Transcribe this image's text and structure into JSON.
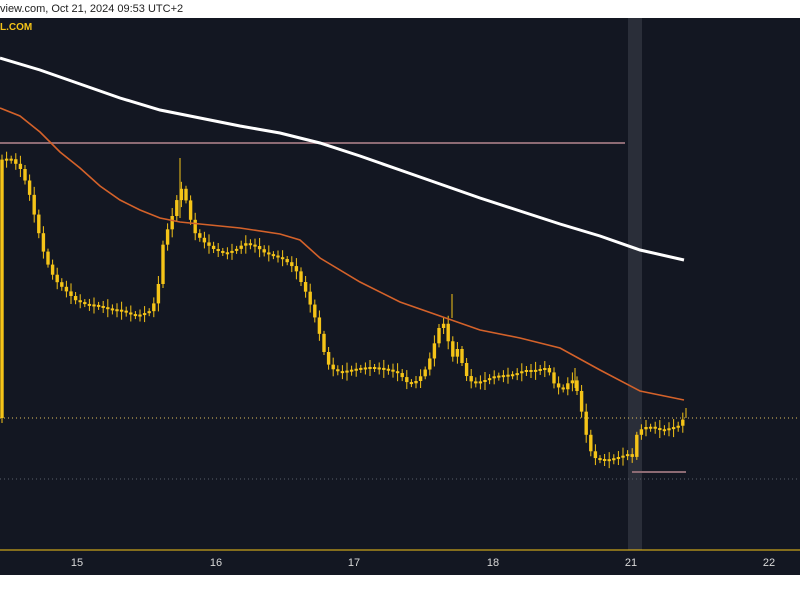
{
  "header": {
    "watermark": "view.com, Oct 21, 2024 09:53 UTC+2",
    "symbol_fragment": "L.COM"
  },
  "colors": {
    "background": "#131722",
    "candle": "#f5c418",
    "ema_fast": "#d4622a",
    "ema_slow": "#ffffff",
    "level_line": "#8d6b74",
    "price_line": "#e0c060",
    "highlight": "#2a2e39",
    "axis_text": "#d9d9d9"
  },
  "chart_data": {
    "type": "candlestick",
    "x_ticks": [
      "15",
      "16",
      "17",
      "18",
      "21",
      "22"
    ],
    "price_scale": "hidden",
    "grid": false,
    "session_highlight": "21",
    "level_line": {
      "y_fraction_of_range": 0.135,
      "from": "start",
      "to": "21"
    },
    "ema_fast": {
      "name": "",
      "color": "#d4622a"
    },
    "ema_slow": {
      "name": "",
      "color": "#ffffff"
    }
  }
}
